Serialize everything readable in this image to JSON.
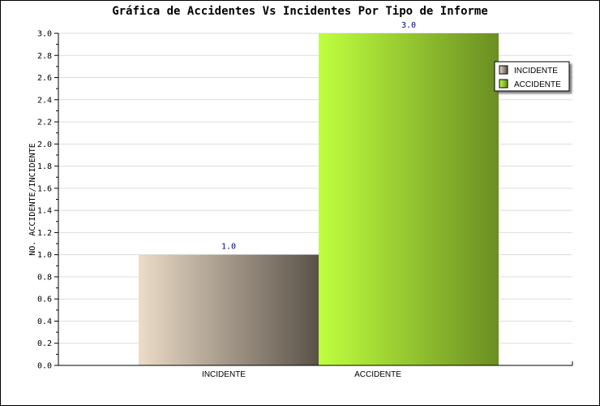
{
  "chart_data": {
    "type": "bar",
    "title": "Gráfica de Accidentes Vs Incidentes Por Tipo de Informe",
    "xlabel": "",
    "ylabel": "NO. ACCIDENTE/INCIDENTE",
    "categories": [
      "INCIDENTE",
      "ACCIDENTE"
    ],
    "values": [
      1.0,
      3.0
    ],
    "value_labels": [
      "1.0",
      "3.0"
    ],
    "ylim": [
      0,
      3.0
    ],
    "y_ticks": [
      "0.0",
      "0.2",
      "0.4",
      "0.6",
      "0.8",
      "1.0",
      "1.2",
      "1.4",
      "1.6",
      "1.8",
      "2.0",
      "2.2",
      "2.4",
      "2.6",
      "2.8",
      "3.0"
    ],
    "grid": true,
    "legend_position": "right",
    "legend": [
      "INCIDENTE",
      "ACCIDENTE"
    ],
    "colors": {
      "INCIDENTE": [
        "#ecdcc8",
        "#5a5248"
      ],
      "ACCIDENTE": [
        "#bfff3e",
        "#6b8e23"
      ]
    }
  }
}
